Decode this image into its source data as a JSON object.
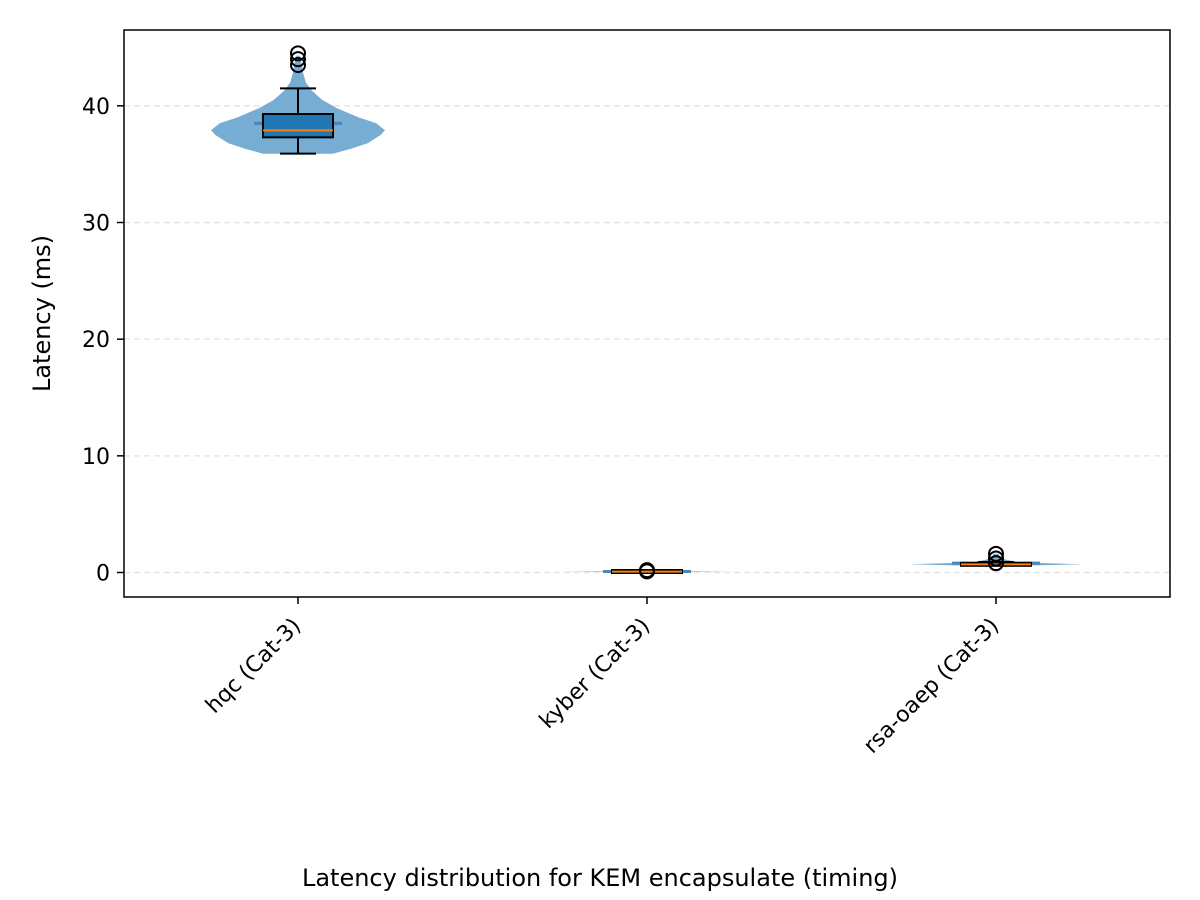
{
  "caption": "Latency distribution for KEM encapsulate (timing)",
  "chart_data": {
    "type": "violin",
    "ylabel": "Latency (ms)",
    "xlabel": "",
    "ylim": [
      -2.1,
      46.5
    ],
    "yticks": [
      0,
      10,
      20,
      30,
      40
    ],
    "grid": "y-dashed",
    "categories": [
      "hqc (Cat-3)",
      "kyber (Cat-3)",
      "rsa-oaep (Cat-3)"
    ],
    "groups": [
      {
        "name": "hqc (Cat-3)",
        "min": 35.9,
        "q1": 37.3,
        "median": 37.9,
        "mean": 38.5,
        "q3": 39.3,
        "max": 41.5,
        "outliers": [
          43.5,
          44.0,
          44.5
        ],
        "density": [
          [
            35.9,
            0.4
          ],
          [
            36.3,
            0.6
          ],
          [
            36.8,
            0.8
          ],
          [
            37.5,
            0.95
          ],
          [
            37.9,
            1.0
          ],
          [
            38.5,
            0.9
          ],
          [
            39.0,
            0.7
          ],
          [
            39.8,
            0.45
          ],
          [
            40.5,
            0.28
          ],
          [
            41.3,
            0.16
          ],
          [
            42.0,
            0.09
          ],
          [
            42.8,
            0.06
          ],
          [
            43.6,
            0.04
          ],
          [
            44.3,
            0.02
          ]
        ]
      },
      {
        "name": "kyber (Cat-3)",
        "min": 0.05,
        "q1": 0.07,
        "median": 0.08,
        "mean": 0.09,
        "q3": 0.1,
        "max": 0.13,
        "outliers": [
          0.1,
          0.2
        ],
        "density": [
          [
            0.04,
            0.1
          ],
          [
            0.06,
            0.6
          ],
          [
            0.08,
            1.0
          ],
          [
            0.1,
            0.6
          ],
          [
            0.12,
            0.2
          ],
          [
            0.2,
            0.05
          ]
        ]
      },
      {
        "name": "rsa-oaep (Cat-3)",
        "min": 0.6,
        "q1": 0.6,
        "median": 0.7,
        "mean": 0.8,
        "q3": 0.8,
        "max": 0.9,
        "outliers": [
          0.8,
          1.2,
          1.6
        ],
        "density": [
          [
            0.55,
            0.15
          ],
          [
            0.65,
            0.7
          ],
          [
            0.7,
            1.0
          ],
          [
            0.8,
            0.6
          ],
          [
            0.9,
            0.25
          ],
          [
            1.2,
            0.05
          ],
          [
            1.6,
            0.03
          ]
        ]
      }
    ],
    "colors": {
      "violin": "#77acd3",
      "mean_line": "#4a86bb",
      "box": "#1f77b4",
      "box_edge": "#000000",
      "median": "#ff7f0e",
      "grid": "#e6e6e6"
    }
  }
}
